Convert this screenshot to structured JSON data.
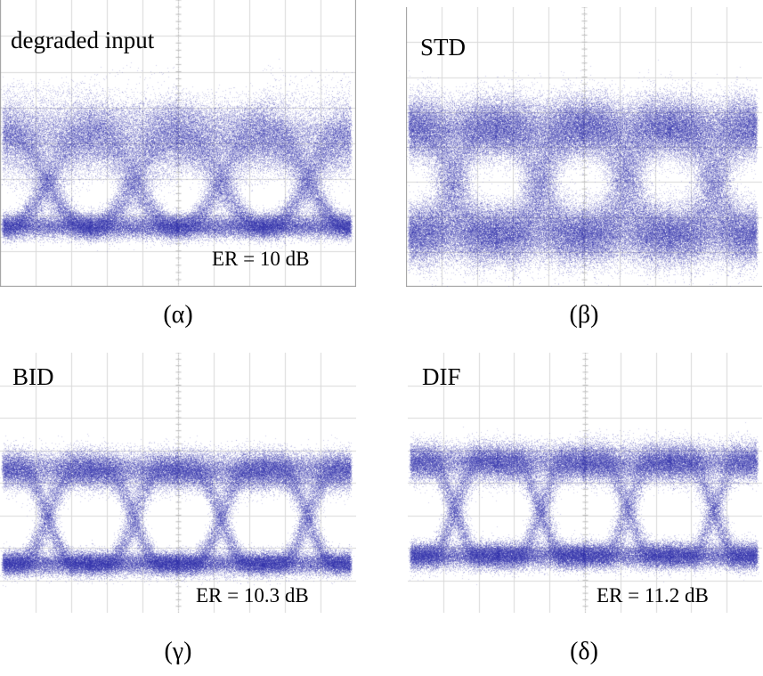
{
  "chart_data": [
    {
      "type": "eye-diagram",
      "panel": "a",
      "title": "degraded input",
      "er_text": "ER = 10 dB",
      "caption": "(α)",
      "trace_color": "#2a2aa8",
      "eye_count": 4,
      "profile": {
        "high_level": 0.53,
        "low_level": 0.21,
        "high_spread": 0.06,
        "low_spread": 0.012,
        "crossing_width": 0.9,
        "noise": 0.018,
        "eye_shape": "round"
      }
    },
    {
      "type": "eye-diagram",
      "panel": "b",
      "title": "STD",
      "er_text": "",
      "caption": "(β)",
      "trace_color": "#2a2aa8",
      "eye_count": 4,
      "profile": {
        "high_level": 0.57,
        "low_level": 0.19,
        "high_spread": 0.02,
        "low_spread": 0.012,
        "crossing_width": 0.7,
        "noise": 0.05,
        "eye_shape": "closed"
      }
    },
    {
      "type": "eye-diagram",
      "panel": "c",
      "title": "BID",
      "er_text": "ER = 10.3 dB",
      "caption": "(γ)",
      "trace_color": "#2a2aa8",
      "eye_count": 4,
      "profile": {
        "high_level": 0.55,
        "low_level": 0.19,
        "high_spread": 0.03,
        "low_spread": 0.01,
        "crossing_width": 0.6,
        "noise": 0.02,
        "eye_shape": "open"
      }
    },
    {
      "type": "eye-diagram",
      "panel": "d",
      "title": "DIF",
      "er_text": "ER = 11.2 dB",
      "caption": "(δ)",
      "trace_color": "#2a2aa8",
      "eye_count": 4,
      "profile": {
        "high_level": 0.58,
        "low_level": 0.22,
        "high_spread": 0.03,
        "low_spread": 0.015,
        "crossing_width": 0.4,
        "noise": 0.02,
        "eye_shape": "triangular"
      }
    }
  ]
}
